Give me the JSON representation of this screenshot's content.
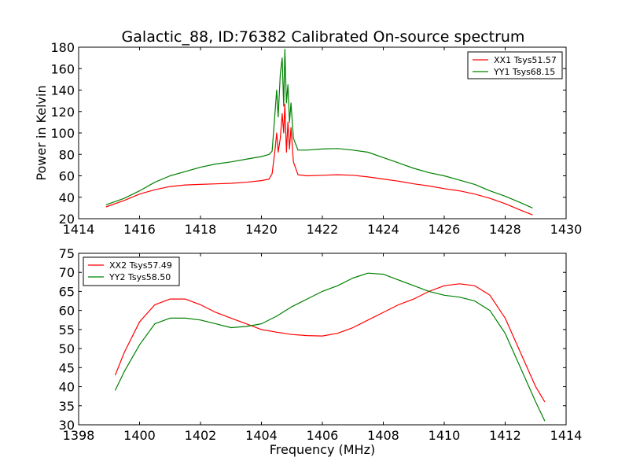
{
  "title": "Galactic_88, ID:76382 Calibrated On-source spectrum",
  "colors": {
    "series_red": "#ff0000",
    "series_green": "#008000"
  },
  "chart_data": [
    {
      "type": "line",
      "xlim": [
        1414,
        1430
      ],
      "ylim": [
        20,
        180
      ],
      "xticks": [
        1414,
        1416,
        1418,
        1420,
        1422,
        1424,
        1426,
        1428,
        1430
      ],
      "yticks": [
        20,
        40,
        60,
        80,
        100,
        120,
        140,
        160,
        180
      ],
      "xlabel": "",
      "ylabel": "Power in Kelvin",
      "legend_position": "top-right",
      "series": [
        {
          "name": "XX1 Tsys51.57",
          "color": "#ff0000",
          "points": [
            [
              1414.9,
              31
            ],
            [
              1415.5,
              37
            ],
            [
              1416,
              43
            ],
            [
              1416.5,
              47
            ],
            [
              1417,
              50
            ],
            [
              1417.5,
              51.5
            ],
            [
              1418,
              52
            ],
            [
              1418.5,
              52.5
            ],
            [
              1419,
              53
            ],
            [
              1419.5,
              54
            ],
            [
              1420,
              55.5
            ],
            [
              1420.25,
              57
            ],
            [
              1420.35,
              62
            ],
            [
              1420.45,
              85
            ],
            [
              1420.5,
              100
            ],
            [
              1420.55,
              82
            ],
            [
              1420.62,
              95
            ],
            [
              1420.68,
              118
            ],
            [
              1420.73,
              100
            ],
            [
              1420.77,
              127
            ],
            [
              1420.82,
              82
            ],
            [
              1420.87,
              110
            ],
            [
              1420.92,
              85
            ],
            [
              1420.97,
              105
            ],
            [
              1421.05,
              73
            ],
            [
              1421.2,
              61
            ],
            [
              1421.5,
              60
            ],
            [
              1422,
              60.5
            ],
            [
              1422.5,
              61
            ],
            [
              1423,
              60.5
            ],
            [
              1423.5,
              59
            ],
            [
              1424,
              57
            ],
            [
              1424.5,
              55
            ],
            [
              1425,
              52.5
            ],
            [
              1425.5,
              50.5
            ],
            [
              1426,
              48
            ],
            [
              1426.5,
              46
            ],
            [
              1427,
              43
            ],
            [
              1427.5,
              39
            ],
            [
              1428,
              34
            ],
            [
              1428.5,
              28
            ],
            [
              1428.9,
              23.5
            ]
          ]
        },
        {
          "name": "YY1 Tsys68.15",
          "color": "#008000",
          "points": [
            [
              1414.9,
              33
            ],
            [
              1415.5,
              39
            ],
            [
              1416,
              46
            ],
            [
              1416.5,
              54
            ],
            [
              1417,
              60
            ],
            [
              1417.5,
              64
            ],
            [
              1418,
              68
            ],
            [
              1418.5,
              71
            ],
            [
              1419,
              73
            ],
            [
              1419.5,
              75.5
            ],
            [
              1420,
              78
            ],
            [
              1420.25,
              80
            ],
            [
              1420.35,
              83
            ],
            [
              1420.45,
              120
            ],
            [
              1420.5,
              140
            ],
            [
              1420.55,
              115
            ],
            [
              1420.62,
              155
            ],
            [
              1420.68,
              170
            ],
            [
              1420.73,
              125
            ],
            [
              1420.77,
              178
            ],
            [
              1420.82,
              128
            ],
            [
              1420.87,
              145
            ],
            [
              1420.92,
              110
            ],
            [
              1420.97,
              128
            ],
            [
              1421.05,
              95
            ],
            [
              1421.2,
              84
            ],
            [
              1421.5,
              84
            ],
            [
              1422,
              85
            ],
            [
              1422.5,
              85.5
            ],
            [
              1423,
              84
            ],
            [
              1423.5,
              82
            ],
            [
              1424,
              77
            ],
            [
              1424.5,
              72
            ],
            [
              1425,
              67
            ],
            [
              1425.5,
              63
            ],
            [
              1426,
              60
            ],
            [
              1426.5,
              56
            ],
            [
              1427,
              52
            ],
            [
              1427.5,
              46
            ],
            [
              1428,
              41
            ],
            [
              1428.5,
              35
            ],
            [
              1428.9,
              30
            ]
          ]
        }
      ]
    },
    {
      "type": "line",
      "xlim": [
        1398,
        1414
      ],
      "ylim": [
        30,
        75
      ],
      "xticks": [
        1398,
        1400,
        1402,
        1404,
        1406,
        1408,
        1410,
        1412,
        1414
      ],
      "yticks": [
        30,
        35,
        40,
        45,
        50,
        55,
        60,
        65,
        70,
        75
      ],
      "xlabel": "Frequency (MHz)",
      "ylabel": "",
      "legend_position": "top-left",
      "series": [
        {
          "name": "XX2 Tsys57.49",
          "color": "#ff0000",
          "points": [
            [
              1399.2,
              43
            ],
            [
              1399.5,
              49
            ],
            [
              1400,
              57
            ],
            [
              1400.5,
              61.5
            ],
            [
              1401,
              63
            ],
            [
              1401.5,
              63
            ],
            [
              1402,
              61.5
            ],
            [
              1402.5,
              59.5
            ],
            [
              1403,
              58
            ],
            [
              1403.5,
              56.5
            ],
            [
              1404,
              55
            ],
            [
              1404.5,
              54.3
            ],
            [
              1405,
              53.7
            ],
            [
              1405.5,
              53.4
            ],
            [
              1406,
              53.3
            ],
            [
              1406.5,
              54
            ],
            [
              1407,
              55.5
            ],
            [
              1407.5,
              57.5
            ],
            [
              1408,
              59.5
            ],
            [
              1408.5,
              61.5
            ],
            [
              1409,
              63
            ],
            [
              1409.5,
              65
            ],
            [
              1410,
              66.5
            ],
            [
              1410.5,
              67
            ],
            [
              1411,
              66.5
            ],
            [
              1411.5,
              64
            ],
            [
              1412,
              58
            ],
            [
              1412.5,
              49
            ],
            [
              1413,
              40
            ],
            [
              1413.3,
              36
            ]
          ]
        },
        {
          "name": "YY2 Tsys58.50",
          "color": "#008000",
          "points": [
            [
              1399.2,
              39
            ],
            [
              1399.5,
              44
            ],
            [
              1400,
              51
            ],
            [
              1400.5,
              56.5
            ],
            [
              1401,
              58
            ],
            [
              1401.5,
              58
            ],
            [
              1402,
              57.5
            ],
            [
              1402.5,
              56.5
            ],
            [
              1403,
              55.5
            ],
            [
              1403.5,
              55.8
            ],
            [
              1404,
              56.5
            ],
            [
              1404.5,
              58.5
            ],
            [
              1405,
              61
            ],
            [
              1405.5,
              63
            ],
            [
              1406,
              65
            ],
            [
              1406.5,
              66.5
            ],
            [
              1407,
              68.5
            ],
            [
              1407.5,
              69.8
            ],
            [
              1408,
              69.5
            ],
            [
              1408.5,
              68
            ],
            [
              1409,
              66.5
            ],
            [
              1409.5,
              65
            ],
            [
              1410,
              64
            ],
            [
              1410.5,
              63.5
            ],
            [
              1411,
              62.5
            ],
            [
              1411.5,
              60
            ],
            [
              1412,
              54
            ],
            [
              1412.5,
              45
            ],
            [
              1413,
              36
            ],
            [
              1413.3,
              31
            ]
          ]
        }
      ]
    }
  ]
}
